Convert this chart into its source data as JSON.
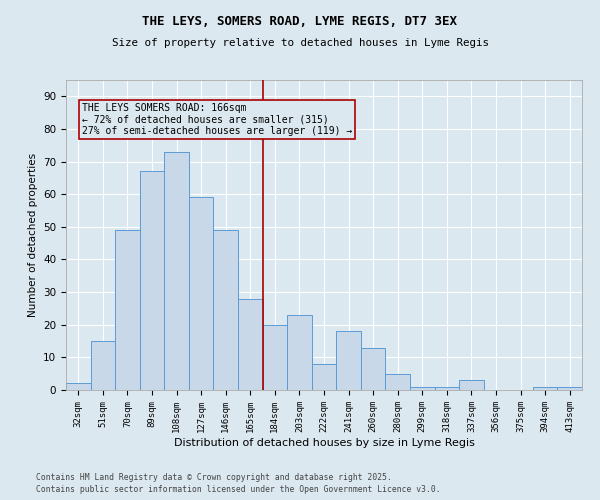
{
  "title1": "THE LEYS, SOMERS ROAD, LYME REGIS, DT7 3EX",
  "title2": "Size of property relative to detached houses in Lyme Regis",
  "xlabel": "Distribution of detached houses by size in Lyme Regis",
  "ylabel": "Number of detached properties",
  "bar_labels": [
    "32sqm",
    "51sqm",
    "70sqm",
    "89sqm",
    "108sqm",
    "127sqm",
    "146sqm",
    "165sqm",
    "184sqm",
    "203sqm",
    "222sqm",
    "241sqm",
    "260sqm",
    "280sqm",
    "299sqm",
    "318sqm",
    "337sqm",
    "356sqm",
    "375sqm",
    "394sqm",
    "413sqm"
  ],
  "bar_values": [
    2,
    15,
    49,
    67,
    73,
    59,
    49,
    28,
    20,
    23,
    8,
    18,
    13,
    5,
    1,
    1,
    3,
    0,
    0,
    1,
    1
  ],
  "bar_color": "#c8d8e8",
  "bar_edge_color": "#5b9bd5",
  "vline_x": 7.5,
  "vline_color": "#aa0000",
  "annotation_text": "THE LEYS SOMERS ROAD: 166sqm\n← 72% of detached houses are smaller (315)\n27% of semi-detached houses are larger (119) →",
  "annotation_box_color": "#aa0000",
  "ylim": [
    0,
    95
  ],
  "yticks": [
    0,
    10,
    20,
    30,
    40,
    50,
    60,
    70,
    80,
    90
  ],
  "background_color": "#dce8f0",
  "grid_color": "#ffffff",
  "footnote1": "Contains HM Land Registry data © Crown copyright and database right 2025.",
  "footnote2": "Contains public sector information licensed under the Open Government Licence v3.0."
}
